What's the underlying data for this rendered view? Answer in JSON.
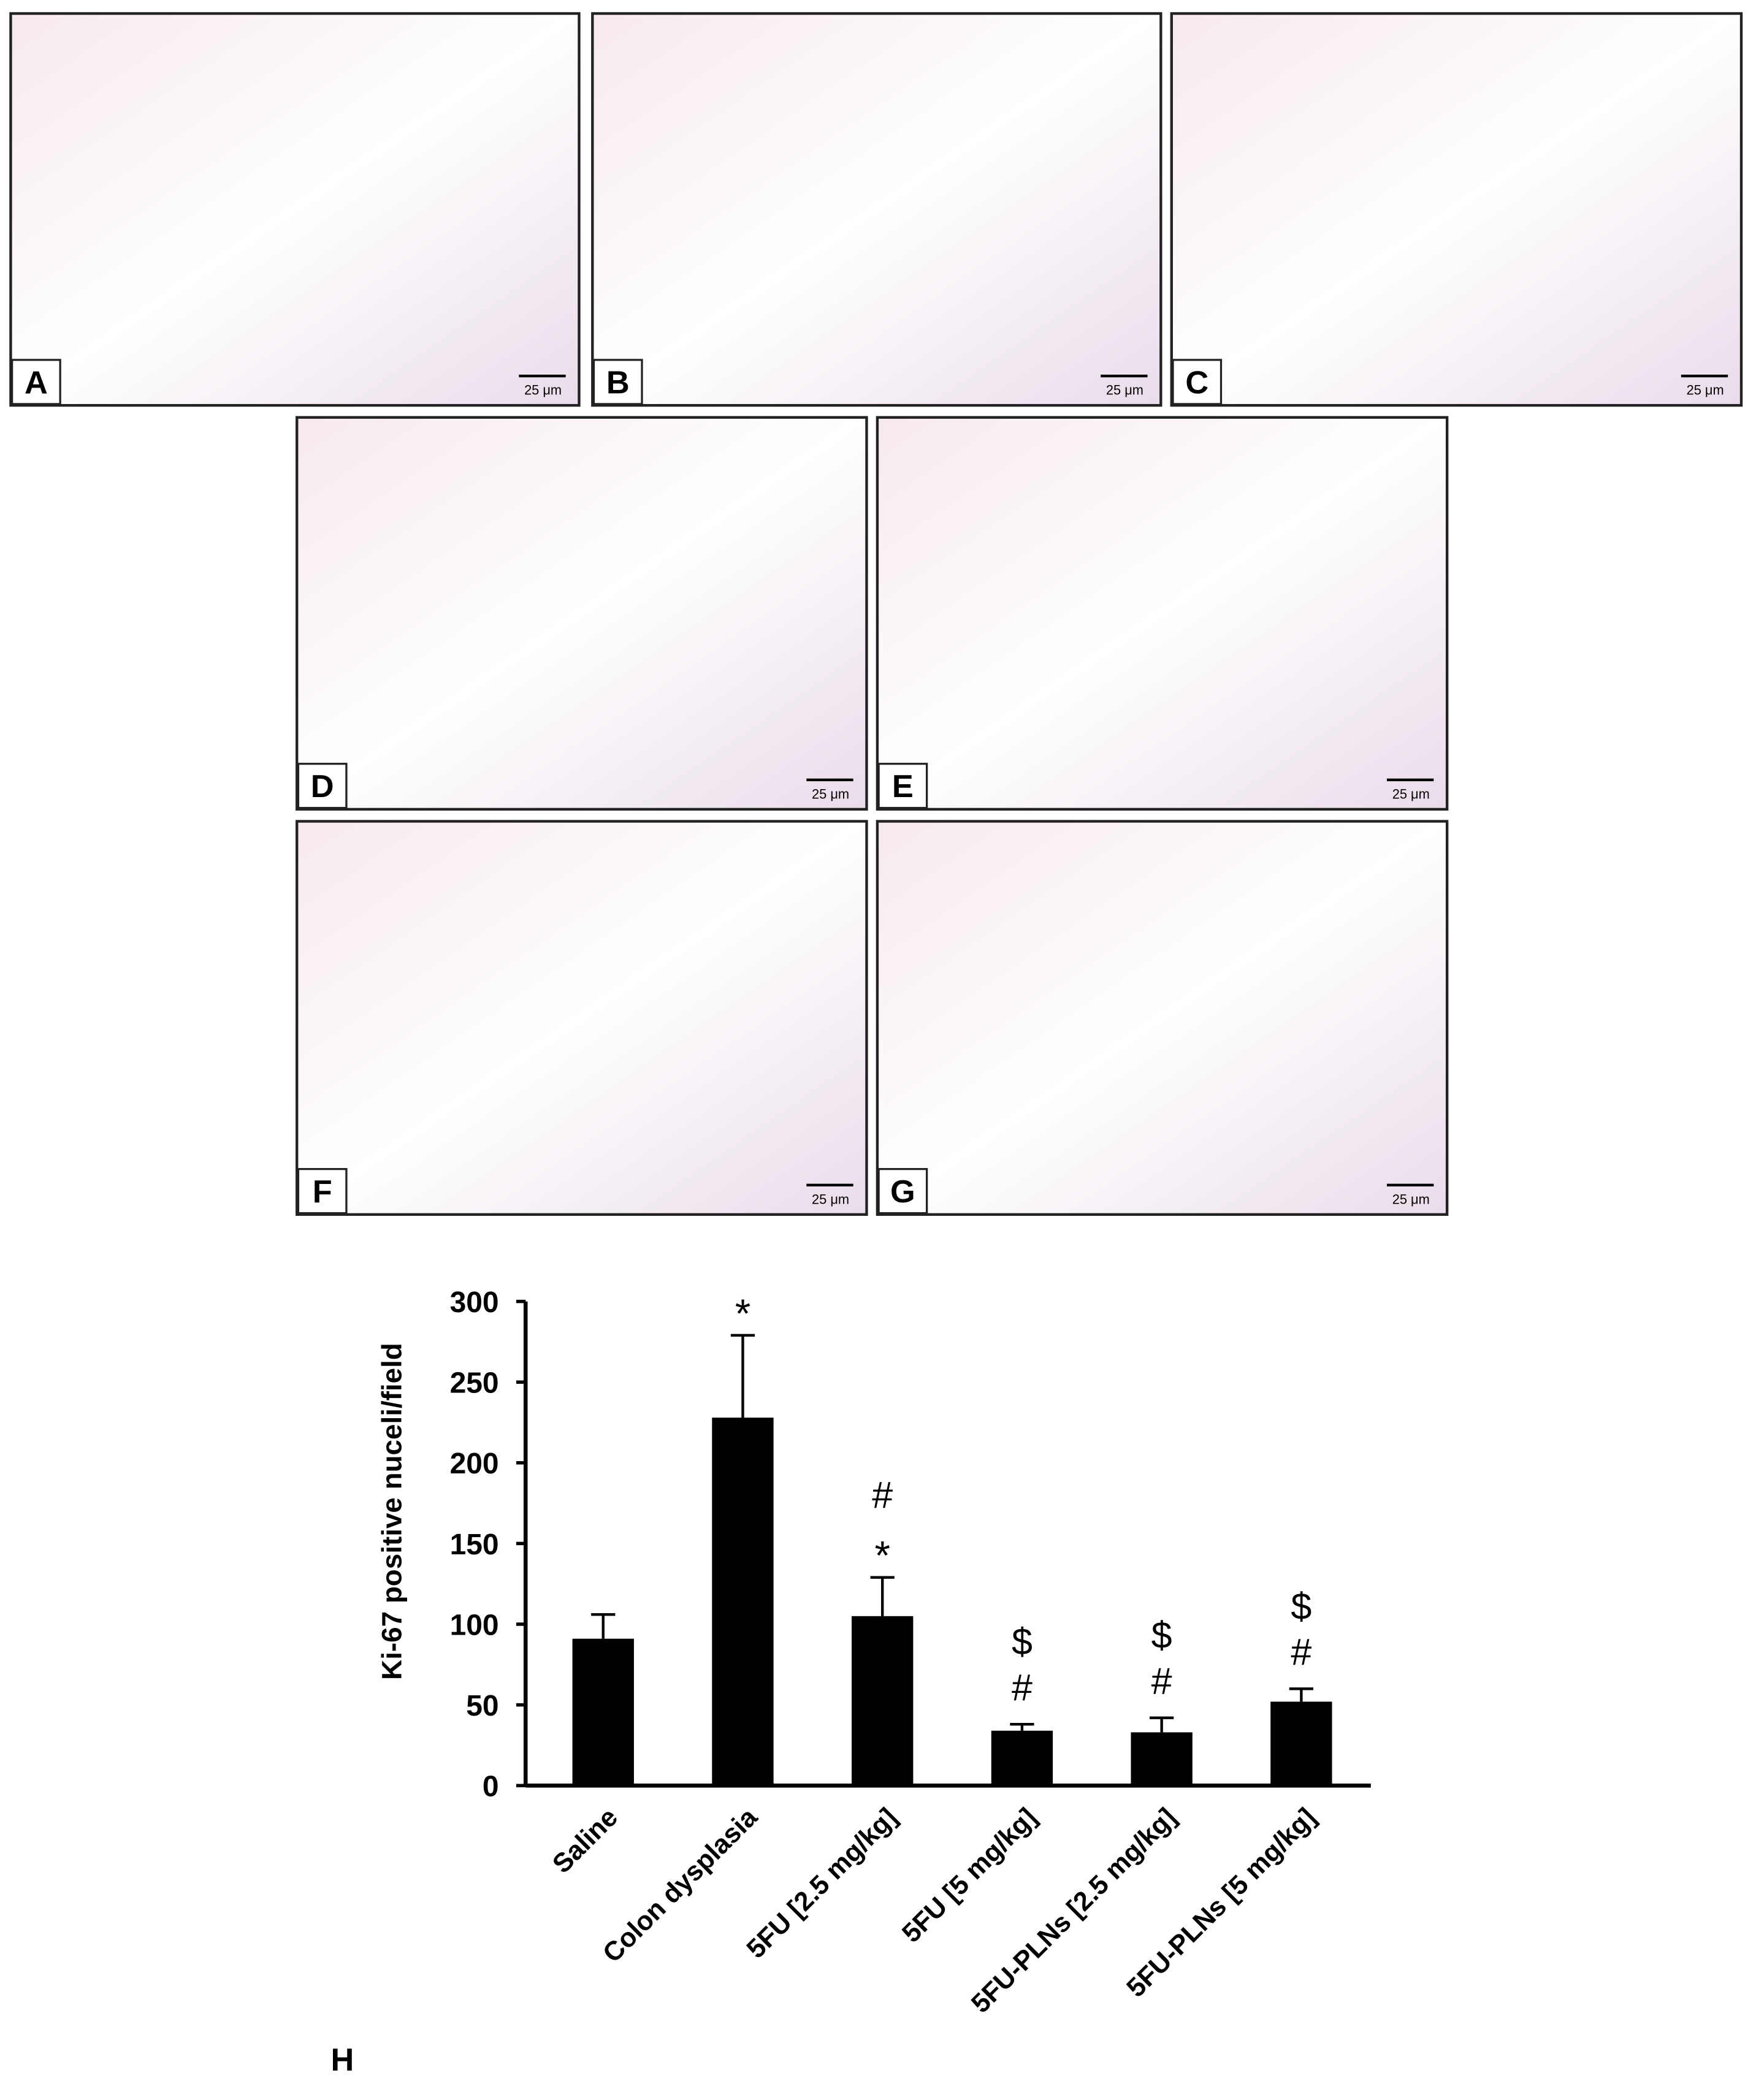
{
  "panels": [
    {
      "label": "A",
      "scale": "25 μm"
    },
    {
      "label": "B",
      "scale": "25 μm"
    },
    {
      "label": "C",
      "scale": "25 μm"
    },
    {
      "label": "D",
      "scale": "25 μm"
    },
    {
      "label": "E",
      "scale": "25 μm"
    },
    {
      "label": "F",
      "scale": "25 μm"
    },
    {
      "label": "G",
      "scale": "25 μm"
    }
  ],
  "chart_data": {
    "type": "bar",
    "panel_label": "H",
    "y_label": "Ki-67 positive nuceli/field",
    "categories": [
      "Saline",
      "Colon dysplasia",
      "5FU [2.5 mg/kg]",
      "5FU [5 mg/kg]",
      "5FU-PLNs  [2.5 mg/kg]",
      "5FU-PLNs  [5 mg/kg]"
    ],
    "values": [
      91,
      228,
      105,
      34,
      33,
      52
    ],
    "errors": [
      15,
      51,
      24,
      4,
      9,
      8
    ],
    "annotations": [
      null,
      [
        "*"
      ],
      [
        "#",
        "*"
      ],
      [
        "$",
        "#"
      ],
      [
        "$",
        "#"
      ],
      [
        "$",
        "#"
      ]
    ],
    "color": "#000000",
    "ylim": [
      0,
      300
    ],
    "yticks": [
      0,
      50,
      100,
      150,
      200,
      250,
      300
    ],
    "grid": false
  }
}
